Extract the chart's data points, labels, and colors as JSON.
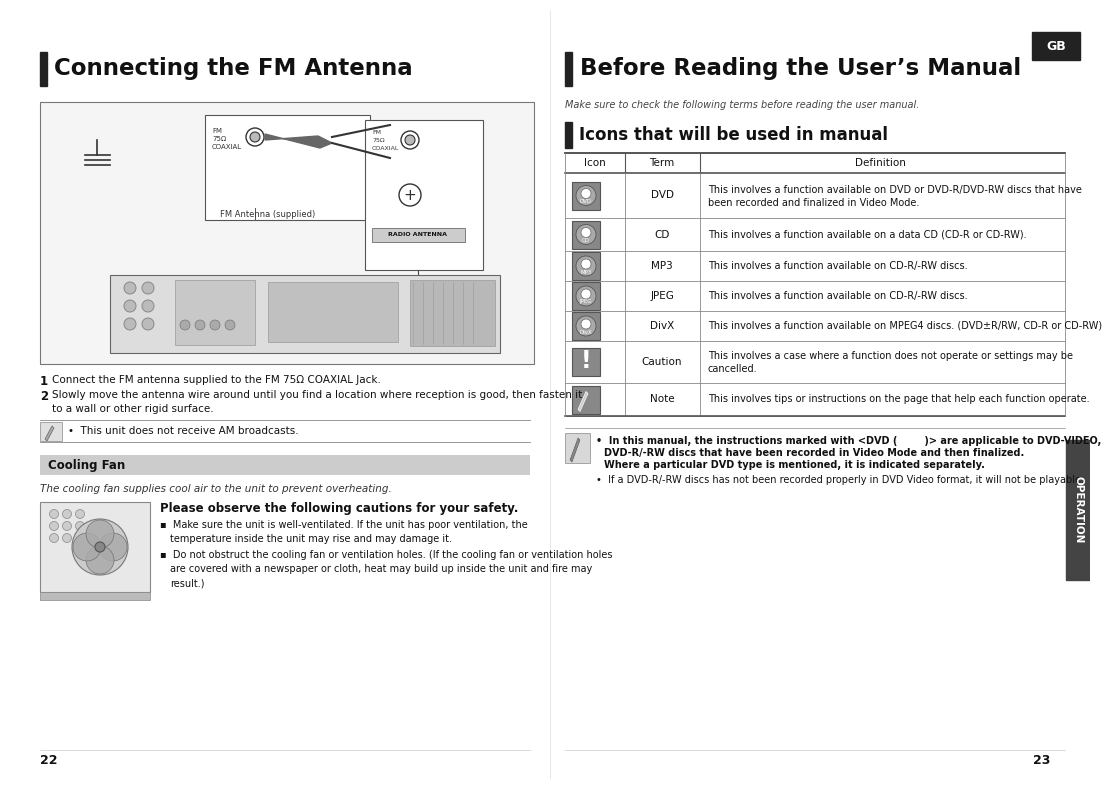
{
  "bg_color": "#ffffff",
  "left_title": "Connecting the FM Antenna",
  "right_title": "Before Reading the User’s Manual",
  "right_subtitle": "Make sure to check the following terms before reading the user manual.",
  "right_section_title": "Icons that will be used in manual",
  "gb_label": "GB",
  "table_header": [
    "Icon",
    "Term",
    "Definition"
  ],
  "table_rows": [
    [
      "DVD",
      "DVD",
      "This involves a function available on DVD or DVD-R/DVD-RW discs that have\nbeen recorded and finalized in Video Mode."
    ],
    [
      "CD",
      "CD",
      "This involves a function available on a data CD (CD-R or CD-RW)."
    ],
    [
      "MP3",
      "MP3",
      "This involves a function available on CD-R/-RW discs."
    ],
    [
      "JPEG",
      "JPEG",
      "This involves a function available on CD-R/-RW discs."
    ],
    [
      "DivX",
      "DivX",
      "This involves a function available on MPEG4 discs. (DVD±R/RW, CD-R or CD-RW)"
    ],
    [
      "!",
      "Caution",
      "This involves a case where a function does not operate or settings may be\ncancelled."
    ],
    [
      "note",
      "Note",
      "This involves tips or instructions on the page that help each function operate."
    ]
  ],
  "operation_label": "OPERATION",
  "note_text": "This unit does not receive AM broadcasts.",
  "cooling_fan_title": "Cooling Fan",
  "cooling_fan_subtitle": "The cooling fan supplies cool air to the unit to prevent overheating.",
  "cooling_please": "Please observe the following cautions for your safety.",
  "cooling_bullet1a": "Make sure the unit is well-ventilated. If the unit has poor ventilation, the",
  "cooling_bullet1b": "temperature inside the unit may rise and may damage it.",
  "cooling_bullet2a": "Do not obstruct the cooling fan or ventilation holes. (If the cooling fan or ventilation holes",
  "cooling_bullet2b": "are covered with a newspaper or cloth, heat may build up inside the unit and fire may",
  "cooling_bullet2c": "result.)",
  "right_note_bold1": "In this manual, the instructions marked with <DVD (        )> are applicable to DVD-VIDEO,",
  "right_note_bold2": "DVD-R/-RW discs that have been recorded in Video Mode and then finalized.",
  "right_note_bold3": "Where a particular DVD type is mentioned, it is indicated separately.",
  "right_note2": "If a DVD-R/-RW discs has not been recorded properly in DVD Video format, it will not be playable.",
  "page_left": "22",
  "page_right": "23"
}
